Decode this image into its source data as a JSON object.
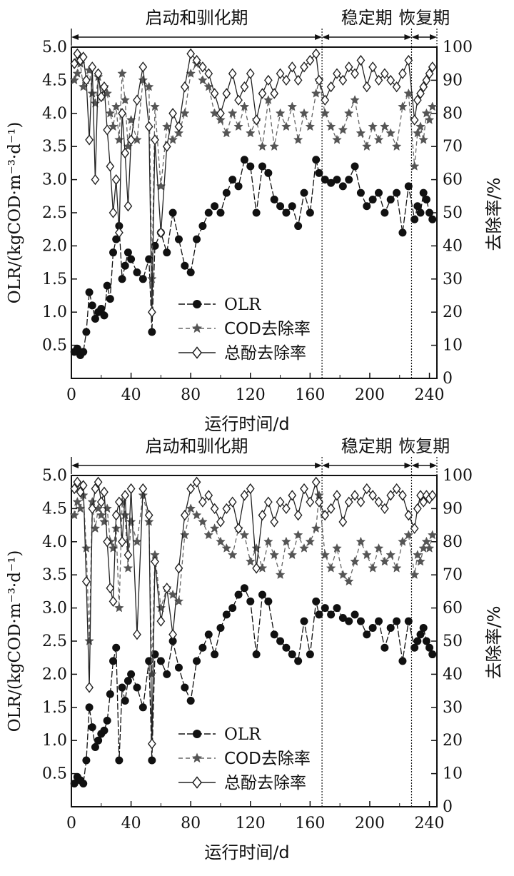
{
  "chart_data": [
    {
      "type": "line",
      "xlabel": "运行时间/d",
      "ylabel_left": "OLR/(kgCOD·m⁻³·d⁻¹)",
      "ylabel_right": "去除率/%",
      "xlim": [
        0,
        245
      ],
      "ylim_left": [
        0,
        5
      ],
      "ylim_right": [
        0,
        100
      ],
      "x_ticks": [
        "40",
        "80",
        "120",
        "160",
        "200",
        "240"
      ],
      "x_tick_values": [
        40,
        80,
        120,
        160,
        200,
        240
      ],
      "x_tick_zero": "0",
      "y_left_ticks": [
        "0.5",
        "1.0",
        "1.5",
        "2.0",
        "2.5",
        "3.0",
        "3.5",
        "4.0",
        "4.5",
        "5.0"
      ],
      "y_left_tick_values": [
        0.5,
        1.0,
        1.5,
        2.0,
        2.5,
        3.0,
        3.5,
        4.0,
        4.5,
        5.0
      ],
      "y_right_ticks": [
        "0",
        "10",
        "20",
        "30",
        "40",
        "50",
        "60",
        "70",
        "80",
        "90",
        "100"
      ],
      "y_right_tick_values": [
        0,
        10,
        20,
        30,
        40,
        50,
        60,
        70,
        80,
        90,
        100
      ],
      "phases": [
        {
          "label": "启动和驯化期",
          "start": 0,
          "end": 168
        },
        {
          "label": "稳定期",
          "start": 168,
          "end": 228
        },
        {
          "label": "恢复期",
          "start": 228,
          "end": 245
        }
      ],
      "legend_position": "center-left",
      "legend_colors": {
        "OLR": "#111111",
        "COD": "#555555",
        "phenol": "#222222"
      },
      "series": [
        {
          "name": "OLR",
          "axis": "left",
          "marker": "filled-circle",
          "x": [
            2,
            4,
            6,
            8,
            10,
            12,
            14,
            16,
            18,
            20,
            22,
            24,
            26,
            28,
            30,
            32,
            34,
            36,
            38,
            40,
            44,
            48,
            52,
            54,
            56,
            60,
            64,
            68,
            72,
            76,
            80,
            84,
            88,
            92,
            96,
            100,
            104,
            108,
            112,
            116,
            120,
            124,
            128,
            132,
            136,
            140,
            144,
            148,
            152,
            156,
            160,
            164,
            166,
            170,
            174,
            178,
            182,
            186,
            190,
            194,
            198,
            202,
            206,
            210,
            214,
            218,
            222,
            226,
            230,
            232,
            234,
            236,
            238,
            240,
            242
          ],
          "y": [
            0.4,
            0.45,
            0.35,
            0.4,
            0.7,
            1.3,
            1.1,
            0.9,
            1.0,
            1.05,
            0.95,
            1.4,
            1.2,
            1.9,
            2.1,
            2.3,
            1.5,
            1.7,
            1.9,
            1.8,
            1.6,
            1.5,
            1.8,
            0.7,
            2.0,
            2.2,
            1.9,
            2.5,
            2.1,
            1.7,
            1.6,
            2.1,
            2.3,
            2.5,
            2.6,
            2.5,
            2.8,
            3.0,
            2.9,
            3.3,
            3.2,
            2.5,
            3.2,
            3.1,
            2.7,
            2.6,
            2.5,
            2.6,
            2.3,
            2.8,
            2.5,
            3.3,
            3.1,
            3.0,
            2.95,
            3.0,
            2.9,
            3.0,
            3.2,
            2.8,
            2.6,
            2.7,
            2.8,
            2.5,
            2.7,
            2.8,
            2.2,
            2.9,
            2.4,
            2.6,
            2.5,
            2.8,
            2.7,
            2.5,
            2.4
          ]
        },
        {
          "name": "COD去除率",
          "axis": "right",
          "marker": "star",
          "x": [
            2,
            4,
            6,
            8,
            10,
            12,
            14,
            16,
            18,
            20,
            22,
            24,
            26,
            28,
            30,
            32,
            34,
            36,
            38,
            40,
            44,
            48,
            52,
            54,
            56,
            60,
            64,
            68,
            72,
            76,
            80,
            84,
            88,
            92,
            96,
            100,
            104,
            108,
            112,
            116,
            120,
            124,
            128,
            132,
            136,
            140,
            144,
            148,
            152,
            156,
            160,
            164,
            166,
            170,
            174,
            178,
            182,
            186,
            190,
            194,
            198,
            202,
            206,
            210,
            214,
            218,
            222,
            226,
            230,
            232,
            234,
            236,
            238,
            240,
            242
          ],
          "y": [
            90,
            92,
            95,
            88,
            90,
            93,
            86,
            83,
            91,
            85,
            88,
            86,
            80,
            76,
            82,
            72,
            92,
            84,
            70,
            78,
            72,
            90,
            88,
            30,
            82,
            58,
            76,
            72,
            74,
            80,
            92,
            95,
            90,
            88,
            80,
            78,
            74,
            80,
            76,
            82,
            74,
            78,
            70,
            84,
            70,
            80,
            76,
            82,
            72,
            80,
            76,
            86,
            90,
            80,
            76,
            72,
            75,
            80,
            84,
            74,
            70,
            76,
            72,
            76,
            74,
            70,
            82,
            86,
            64,
            74,
            76,
            72,
            80,
            78,
            82
          ]
        },
        {
          "name": "总酚去除率",
          "axis": "right",
          "marker": "open-diamond",
          "x": [
            2,
            4,
            6,
            8,
            10,
            12,
            14,
            16,
            18,
            20,
            22,
            24,
            26,
            28,
            30,
            32,
            34,
            36,
            38,
            40,
            44,
            48,
            52,
            54,
            56,
            60,
            64,
            68,
            72,
            76,
            80,
            84,
            88,
            92,
            96,
            100,
            104,
            108,
            112,
            116,
            120,
            124,
            128,
            132,
            136,
            140,
            144,
            148,
            152,
            156,
            160,
            164,
            166,
            170,
            174,
            178,
            182,
            186,
            190,
            194,
            198,
            202,
            206,
            210,
            214,
            218,
            222,
            226,
            230,
            232,
            234,
            236,
            238,
            240,
            242
          ],
          "y": [
            95,
            98,
            96,
            97,
            90,
            72,
            94,
            60,
            92,
            85,
            88,
            75,
            64,
            50,
            60,
            44,
            80,
            68,
            52,
            72,
            84,
            94,
            76,
            20,
            72,
            44,
            70,
            80,
            76,
            88,
            98,
            96,
            94,
            92,
            86,
            80,
            86,
            92,
            84,
            88,
            92,
            78,
            86,
            90,
            86,
            92,
            90,
            94,
            90,
            94,
            96,
            98,
            90,
            84,
            88,
            92,
            90,
            94,
            92,
            96,
            88,
            94,
            90,
            92,
            90,
            88,
            92,
            96,
            78,
            84,
            86,
            88,
            90,
            92,
            94
          ]
        }
      ]
    },
    {
      "type": "line",
      "xlabel": "运行时间/d",
      "ylabel_left": "OLR/(kgCOD·m⁻³·d⁻¹)",
      "ylabel_right": "去除率/%",
      "xlim": [
        0,
        245
      ],
      "ylim_left": [
        0,
        5
      ],
      "ylim_right": [
        0,
        100
      ],
      "x_ticks": [
        "40",
        "80",
        "120",
        "160",
        "200",
        "240"
      ],
      "x_tick_values": [
        40,
        80,
        120,
        160,
        200,
        240
      ],
      "x_tick_zero": "0",
      "y_left_ticks": [
        "0.5",
        "1.0",
        "1.5",
        "2.0",
        "2.5",
        "3.0",
        "3.5",
        "4.0",
        "4.5",
        "5.0"
      ],
      "y_left_tick_values": [
        0.5,
        1.0,
        1.5,
        2.0,
        2.5,
        3.0,
        3.5,
        4.0,
        4.5,
        5.0
      ],
      "y_right_ticks": [
        "0",
        "10",
        "20",
        "30",
        "40",
        "50",
        "60",
        "70",
        "80",
        "90",
        "100"
      ],
      "y_right_tick_values": [
        0,
        10,
        20,
        30,
        40,
        50,
        60,
        70,
        80,
        90,
        100
      ],
      "phases": [
        {
          "label": "启动和驯化期",
          "start": 0,
          "end": 168
        },
        {
          "label": "稳定期",
          "start": 168,
          "end": 228
        },
        {
          "label": "恢复期",
          "start": 228,
          "end": 245
        }
      ],
      "legend_position": "center-left",
      "series": [
        {
          "name": "OLR",
          "axis": "left",
          "marker": "filled-circle",
          "x": [
            2,
            4,
            6,
            8,
            10,
            12,
            14,
            16,
            18,
            20,
            22,
            24,
            26,
            28,
            30,
            32,
            34,
            36,
            38,
            40,
            44,
            48,
            52,
            54,
            56,
            60,
            64,
            68,
            72,
            76,
            80,
            84,
            88,
            92,
            96,
            100,
            104,
            108,
            112,
            116,
            120,
            124,
            128,
            132,
            136,
            140,
            144,
            148,
            152,
            156,
            160,
            164,
            166,
            170,
            174,
            178,
            182,
            186,
            190,
            194,
            198,
            202,
            206,
            210,
            214,
            218,
            222,
            226,
            230,
            232,
            234,
            236,
            238,
            240,
            242
          ],
          "y": [
            0.35,
            0.45,
            0.4,
            0.35,
            0.7,
            1.5,
            1.2,
            0.9,
            1.0,
            1.1,
            1.15,
            1.3,
            1.7,
            2.2,
            2.4,
            0.7,
            1.8,
            1.6,
            1.9,
            2.0,
            1.8,
            1.5,
            2.2,
            0.7,
            2.3,
            2.2,
            2.0,
            2.5,
            2.1,
            1.8,
            1.6,
            2.2,
            2.4,
            2.6,
            2.3,
            2.7,
            2.9,
            3.0,
            3.2,
            3.3,
            3.1,
            2.3,
            3.2,
            3.1,
            2.6,
            2.5,
            2.4,
            2.3,
            2.2,
            2.8,
            2.3,
            3.1,
            2.9,
            3.0,
            2.9,
            3.0,
            2.85,
            2.8,
            2.9,
            2.8,
            2.6,
            2.7,
            2.8,
            2.4,
            2.7,
            2.8,
            2.2,
            2.8,
            2.4,
            2.5,
            2.6,
            2.7,
            2.5,
            2.4,
            2.3
          ]
        },
        {
          "name": "COD去除率",
          "axis": "right",
          "marker": "star",
          "x": [
            2,
            4,
            6,
            8,
            10,
            12,
            14,
            16,
            18,
            20,
            22,
            24,
            26,
            28,
            30,
            32,
            34,
            36,
            38,
            40,
            44,
            48,
            52,
            54,
            56,
            60,
            64,
            68,
            72,
            76,
            80,
            84,
            88,
            92,
            96,
            100,
            104,
            108,
            112,
            116,
            120,
            124,
            128,
            132,
            136,
            140,
            144,
            148,
            152,
            156,
            160,
            164,
            166,
            170,
            174,
            178,
            182,
            186,
            190,
            194,
            198,
            202,
            206,
            210,
            214,
            218,
            222,
            226,
            230,
            232,
            234,
            236,
            238,
            240,
            242
          ],
          "y": [
            88,
            92,
            90,
            94,
            78,
            50,
            92,
            84,
            90,
            88,
            86,
            90,
            80,
            78,
            84,
            60,
            92,
            88,
            72,
            86,
            80,
            94,
            86,
            40,
            76,
            60,
            66,
            64,
            62,
            82,
            90,
            88,
            86,
            82,
            84,
            80,
            78,
            76,
            84,
            82,
            74,
            78,
            72,
            80,
            76,
            70,
            80,
            76,
            82,
            78,
            80,
            84,
            94,
            76,
            72,
            78,
            70,
            68,
            74,
            80,
            76,
            72,
            78,
            74,
            76,
            72,
            80,
            82,
            70,
            76,
            74,
            78,
            80,
            78,
            82
          ]
        },
        {
          "name": "总酚去除率",
          "axis": "right",
          "marker": "open-diamond",
          "x": [
            2,
            4,
            6,
            8,
            10,
            12,
            14,
            16,
            18,
            20,
            22,
            24,
            26,
            28,
            30,
            32,
            34,
            36,
            38,
            40,
            44,
            48,
            52,
            54,
            56,
            60,
            64,
            68,
            72,
            76,
            80,
            84,
            88,
            92,
            96,
            100,
            104,
            108,
            112,
            116,
            120,
            124,
            128,
            132,
            136,
            140,
            144,
            148,
            152,
            156,
            160,
            164,
            166,
            170,
            174,
            178,
            182,
            186,
            190,
            194,
            198,
            202,
            206,
            210,
            214,
            218,
            222,
            226,
            230,
            232,
            234,
            236,
            238,
            240,
            242
          ],
          "y": [
            96,
            98,
            95,
            97,
            68,
            36,
            90,
            96,
            98,
            92,
            95,
            80,
            66,
            62,
            88,
            92,
            80,
            94,
            76,
            96,
            52,
            96,
            88,
            19,
            74,
            56,
            66,
            52,
            72,
            88,
            96,
            98,
            92,
            94,
            90,
            86,
            90,
            92,
            84,
            94,
            96,
            72,
            88,
            92,
            86,
            92,
            90,
            94,
            88,
            96,
            92,
            98,
            92,
            88,
            90,
            94,
            86,
            92,
            94,
            92,
            96,
            94,
            92,
            90,
            94,
            96,
            94,
            88,
            84,
            90,
            94,
            92,
            94,
            93,
            94
          ]
        }
      ]
    }
  ]
}
